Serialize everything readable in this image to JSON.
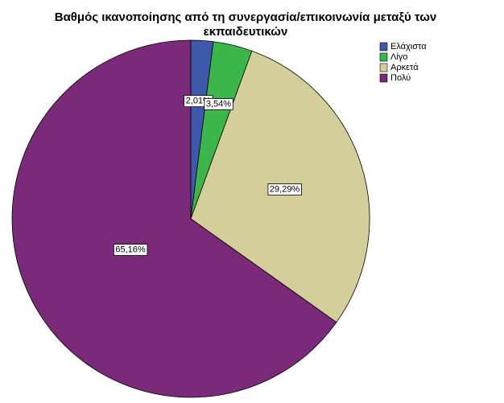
{
  "chart_data": {
    "type": "pie",
    "title": [
      "Βαθμός ικανοποίησης από τη συνεργασία/επικοινωνία μεταξύ των",
      "εκπαιδευτικών"
    ],
    "categories": [
      "Ελάχιστα",
      "Λίγο",
      "Αρκετά",
      "Πολύ"
    ],
    "values": [
      2.01,
      3.54,
      29.29,
      65.16
    ],
    "value_labels": [
      "2,01%",
      "3,54%",
      "29,29%",
      "65,16%"
    ],
    "colors": [
      "#3e58ac",
      "#3cb64a",
      "#d4cf9a",
      "#7b2a7a"
    ],
    "legend": "top-right"
  }
}
